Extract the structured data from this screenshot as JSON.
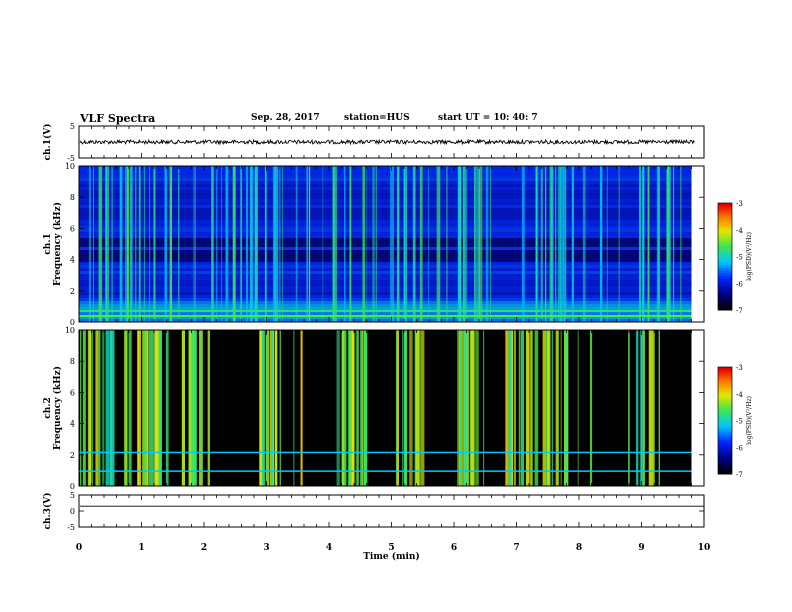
{
  "header": {
    "title": "VLF Spectra",
    "date": "Sep. 28, 2017",
    "station": "station=HUS",
    "start": "start  UT =   10: 40: 7"
  },
  "chart_data": [
    {
      "type": "line",
      "name": "ch1-waveform",
      "ylabel": "ch.1(V)",
      "ylim": [
        -5,
        5
      ],
      "y_ticks": [
        "5",
        "-5"
      ],
      "xlim": [
        0,
        10
      ],
      "trace_level": 0,
      "trace_noise_amplitude": 0.6
    },
    {
      "type": "heatmap",
      "name": "ch1-spectrogram",
      "ylabel_line1": "ch.1",
      "ylabel_line2": "Frequency  (kHz)",
      "ylim": [
        0,
        10
      ],
      "y_ticks": [
        "0",
        "2",
        "4",
        "6",
        "8",
        "10"
      ],
      "xlim": [
        0,
        10
      ],
      "colorbar_label": "log(PSD)(V²/Hz)",
      "colorbar_ticks": [
        "-3",
        "-4",
        "-5",
        "-6",
        "-7"
      ],
      "data_end_min": 9.8
    },
    {
      "type": "heatmap",
      "name": "ch2-spectrogram",
      "ylabel_line1": "ch.2",
      "ylabel_line2": "Frequency  (kHz)",
      "ylim": [
        0,
        10
      ],
      "y_ticks": [
        "0",
        "2",
        "4",
        "6",
        "8",
        "10"
      ],
      "xlim": [
        0,
        10
      ],
      "colorbar_label": "log(PSD)(V²/Hz)",
      "colorbar_ticks": [
        "-3",
        "-4",
        "-5",
        "-6",
        "-7"
      ],
      "data_end_min": 9.8
    },
    {
      "type": "line",
      "name": "ch3-waveform",
      "ylabel": "ch.3(V)",
      "ylim": [
        -5,
        5
      ],
      "y_ticks": [
        "5",
        "0",
        "-5"
      ],
      "xlim": [
        0,
        10
      ],
      "trace_level": 1.5,
      "trace_noise_amplitude": 0
    }
  ],
  "x_axis": {
    "label": "Time  (min)",
    "ticks": [
      "0",
      "1",
      "2",
      "3",
      "4",
      "5",
      "6",
      "7",
      "8",
      "9",
      "10"
    ]
  }
}
